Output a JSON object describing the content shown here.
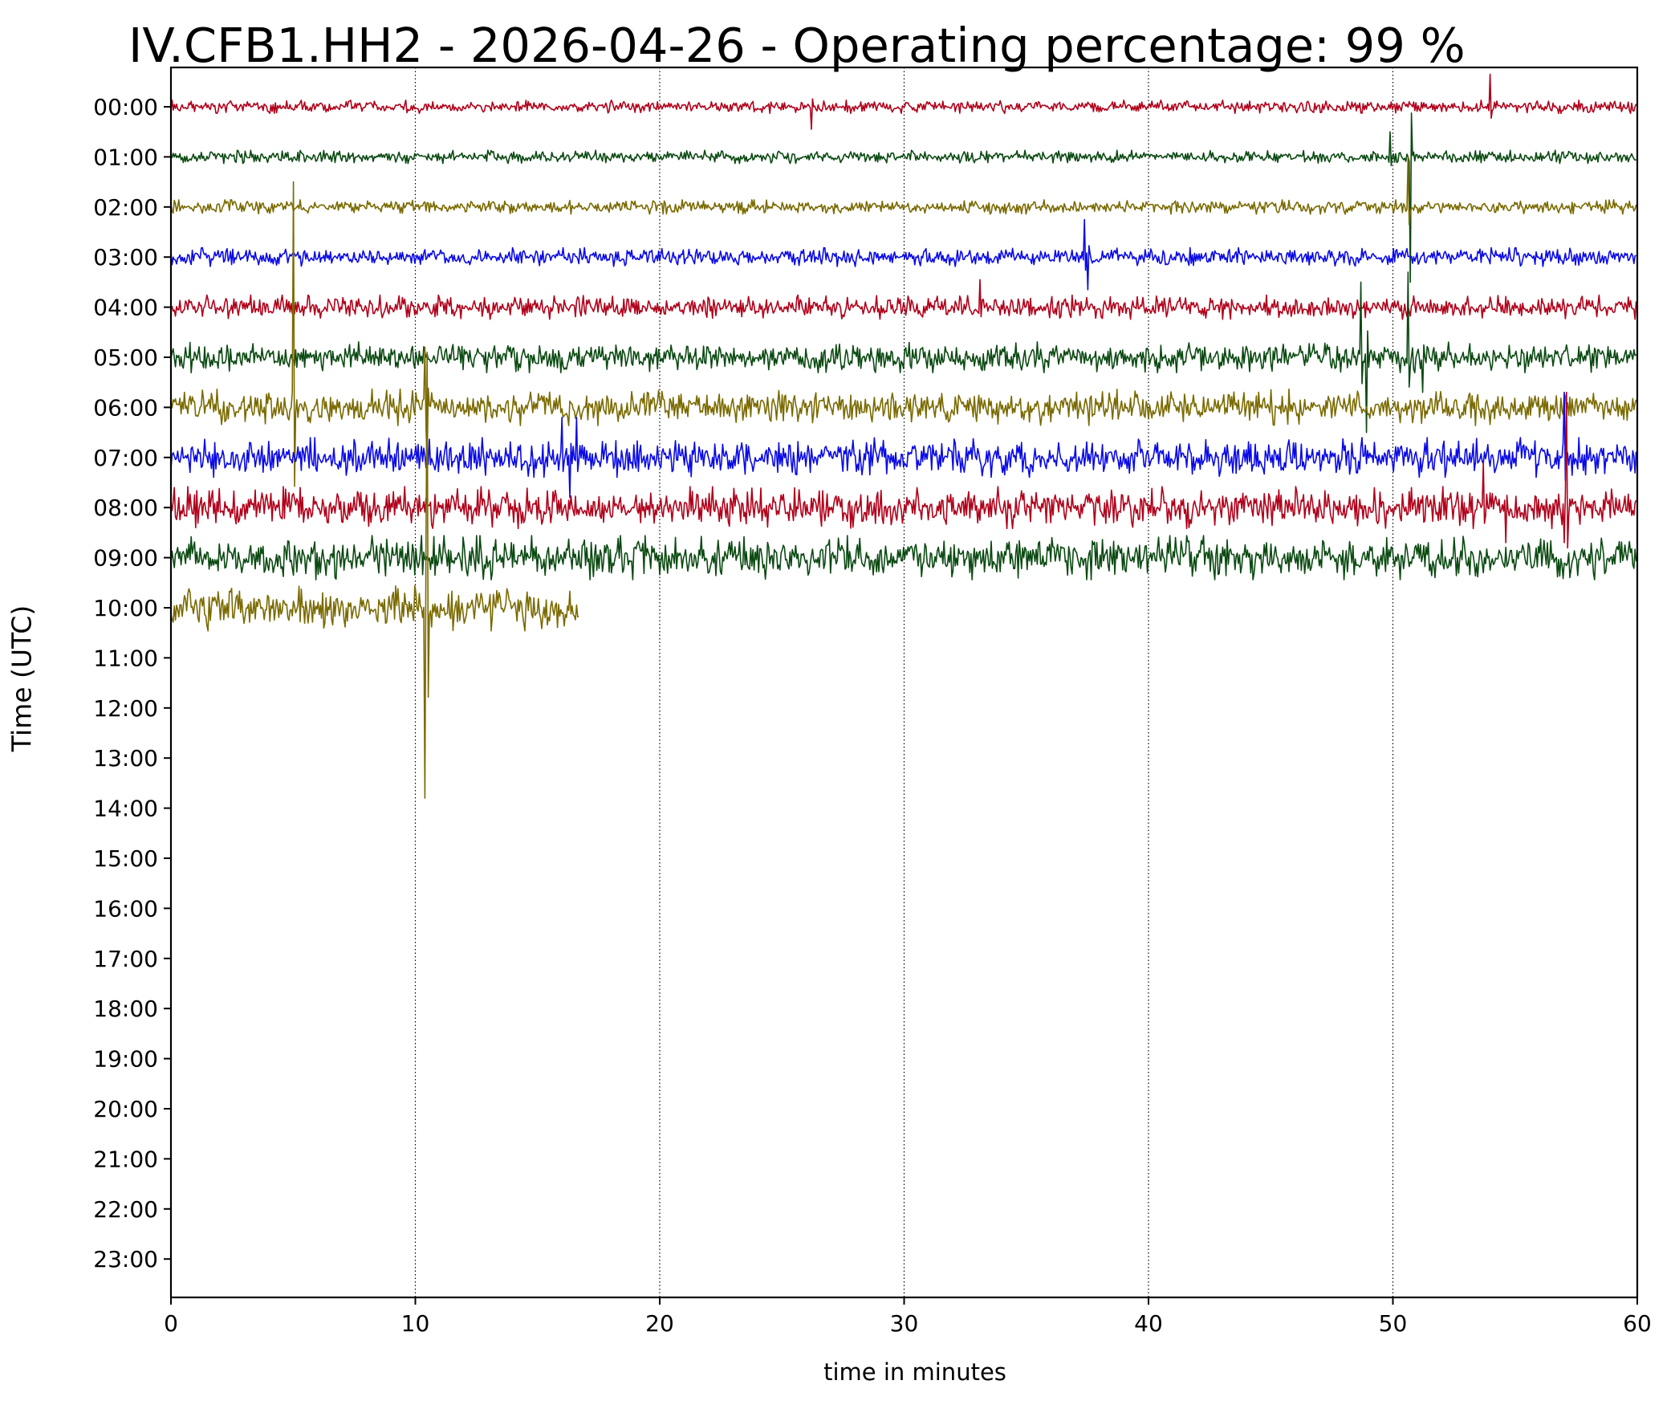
{
  "chart_data": {
    "type": "line",
    "title": "IV.CFB1.HH2 - 2026-04-26 - Operating percentage: 99 %",
    "xlabel": "time in minutes",
    "ylabel": "Time (UTC)",
    "xlim": [
      0,
      60
    ],
    "x_ticks": [
      "0",
      "10",
      "20",
      "30",
      "40",
      "50",
      "60"
    ],
    "y_ticks": [
      "00:00",
      "01:00",
      "02:00",
      "03:00",
      "04:00",
      "05:00",
      "06:00",
      "07:00",
      "08:00",
      "09:00",
      "10:00",
      "11:00",
      "12:00",
      "13:00",
      "14:00",
      "15:00",
      "16:00",
      "17:00",
      "18:00",
      "19:00",
      "20:00",
      "21:00",
      "22:00",
      "23:00"
    ],
    "grid": "vertical dotted lines at major x ticks",
    "colors": [
      "#b0001a",
      "#0b4a12",
      "#7a6a00",
      "#0a0ae6"
    ],
    "series": [
      {
        "hour": "00:00",
        "color": "#b0001a",
        "x_end_minutes": 60,
        "noise_amplitude": 0.12,
        "spikes": [
          [
            26.2,
            -0.45
          ],
          [
            54.0,
            0.65
          ]
        ]
      },
      {
        "hour": "01:00",
        "color": "#0b4a12",
        "x_end_minutes": 60,
        "noise_amplitude": 0.12,
        "spikes": [
          [
            49.9,
            0.5
          ],
          [
            50.7,
            -2.5
          ]
        ]
      },
      {
        "hour": "02:00",
        "color": "#7a6a00",
        "x_end_minutes": 60,
        "noise_amplitude": 0.13,
        "spikes": [
          [
            50.6,
            1.0
          ]
        ]
      },
      {
        "hour": "03:00",
        "color": "#0a0ae6",
        "x_end_minutes": 60,
        "noise_amplitude": 0.17,
        "spikes": [
          [
            37.4,
            0.75
          ],
          [
            37.5,
            -0.65
          ]
        ]
      },
      {
        "hour": "04:00",
        "color": "#b0001a",
        "x_end_minutes": 60,
        "noise_amplitude": 0.22,
        "spikes": [
          [
            33.1,
            0.55
          ]
        ]
      },
      {
        "hour": "05:00",
        "color": "#0b4a12",
        "x_end_minutes": 60,
        "noise_amplitude": 0.28,
        "spikes": [
          [
            48.7,
            1.5
          ],
          [
            48.9,
            -1.5
          ],
          [
            50.6,
            1.7
          ],
          [
            51.2,
            -0.7
          ]
        ]
      },
      {
        "hour": "06:00",
        "color": "#7a6a00",
        "x_end_minutes": 60,
        "noise_amplitude": 0.33,
        "spikes": [
          [
            5.0,
            4.5
          ],
          [
            10.4,
            1.2
          ],
          [
            10.5,
            -1.1
          ]
        ]
      },
      {
        "hour": "07:00",
        "color": "#0a0ae6",
        "x_end_minutes": 60,
        "noise_amplitude": 0.36,
        "spikes": [
          [
            16.0,
            0.8
          ],
          [
            16.3,
            -0.8
          ],
          [
            16.6,
            0.8
          ],
          [
            57.0,
            1.3
          ]
        ]
      },
      {
        "hour": "08:00",
        "color": "#b0001a",
        "x_end_minutes": 60,
        "noise_amplitude": 0.38,
        "spikes": [
          [
            53.7,
            0.9
          ],
          [
            54.6,
            -0.7
          ],
          [
            57.1,
            2.3
          ],
          [
            57.0,
            -0.7
          ]
        ]
      },
      {
        "hour": "09:00",
        "color": "#0b4a12",
        "x_end_minutes": 60,
        "noise_amplitude": 0.4,
        "spikes": []
      },
      {
        "hour": "10:00",
        "color": "#7a6a00",
        "x_end_minutes": 16.7,
        "noise_amplitude": 0.42,
        "spikes": [
          [
            10.5,
            5.1
          ],
          [
            10.4,
            -3.8
          ]
        ]
      }
    ]
  }
}
